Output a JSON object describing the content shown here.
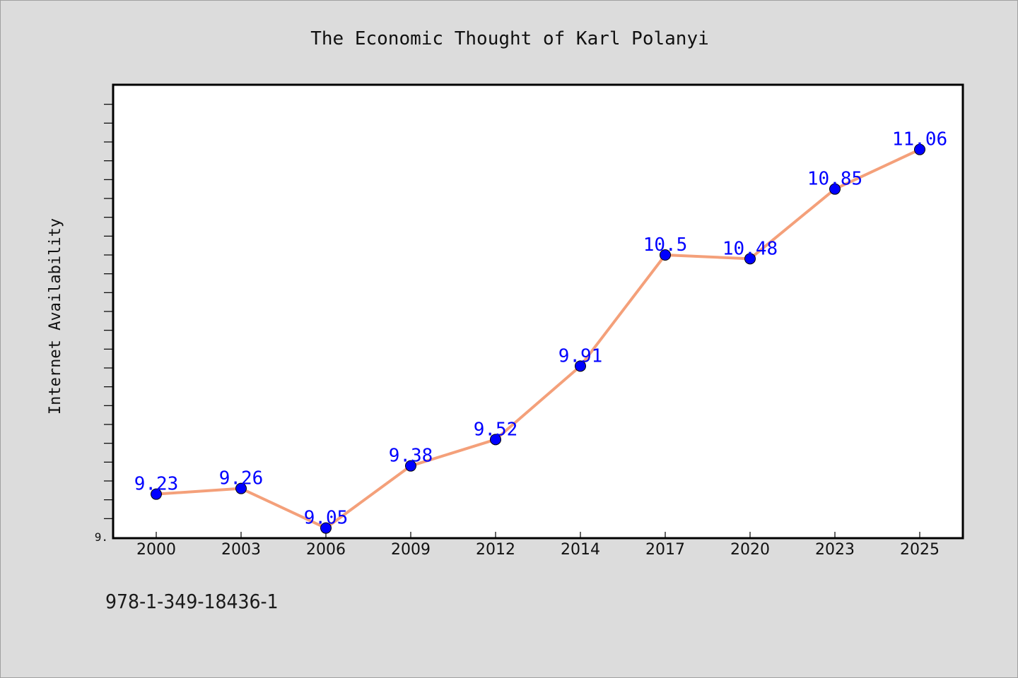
{
  "chart_data": {
    "type": "line",
    "title": "The Economic Thought of Karl Polanyi",
    "ylabel": "Internet Availability",
    "xlabel": "",
    "categories": [
      "2000",
      "2003",
      "2006",
      "2009",
      "2012",
      "2014",
      "2017",
      "2020",
      "2023",
      "2025"
    ],
    "series": [
      {
        "values": [
          9.23,
          9.26,
          9.05,
          9.38,
          9.52,
          9.91,
          10.5,
          10.48,
          10.85,
          11.06
        ]
      }
    ],
    "data_labels": [
      "9.23",
      "9.26",
      "9.05",
      "9.38",
      "9.52",
      "9.91",
      "10.5",
      "10.48",
      "10.85",
      "11.06"
    ],
    "ylim": [
      9.0,
      11.4
    ],
    "y_tick_label": "9.",
    "y_minor_tick_step": 0.1,
    "grid": false,
    "colors": {
      "line": "#f4a07a",
      "marker": "#0000ff",
      "label": "#0000ff",
      "background": "#dcdcdc",
      "plot_background": "#ffffff"
    }
  },
  "footer": {
    "code": "978-1-349-18436-1"
  }
}
